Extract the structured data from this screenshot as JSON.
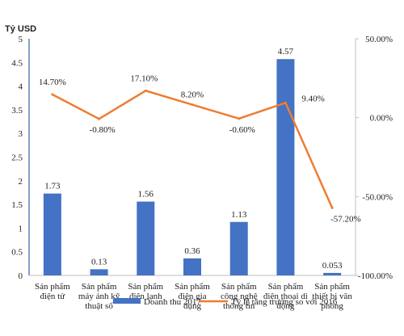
{
  "chart_data": {
    "type": "bar",
    "ylabel_left": "Tỷ USD",
    "categories": [
      [
        "Sản phẩm",
        "điện tử"
      ],
      [
        "Sản phẩm",
        "máy ảnh kỹ",
        "thuật số"
      ],
      [
        "Sản phẩm",
        "điện lạnh"
      ],
      [
        "Sản phẩm",
        "điện gia",
        "dụng"
      ],
      [
        "Sản phẩm",
        "công nghệ",
        "thông tin"
      ],
      [
        "Sản phẩm",
        "điện thoại di",
        "động"
      ],
      [
        "Sản phẩm",
        "thiết bị văn",
        "phòng"
      ]
    ],
    "series": [
      {
        "name": "Doanh thu 2017",
        "type": "bar",
        "axis": "left",
        "color": "#4472C4",
        "values": [
          1.73,
          0.13,
          1.56,
          0.36,
          1.13,
          4.57,
          0.053
        ],
        "labels": [
          "1.73",
          "0.13",
          "1.56",
          "0.36",
          "1.13",
          "4.57",
          "0.053"
        ]
      },
      {
        "name": "Tỷ lệ tăng trưởng so với 2016",
        "type": "line",
        "axis": "right",
        "color": "#ED7D31",
        "values": [
          14.7,
          -0.8,
          17.1,
          8.2,
          -0.6,
          9.4,
          -57.2
        ],
        "labels": [
          "14.70%",
          "-0.80%",
          "17.10%",
          "8.20%",
          "-0.60%",
          "9.40%",
          "-57.20%"
        ]
      }
    ],
    "y_left": {
      "min": 0,
      "max": 5,
      "ticks": [
        "0",
        "0.5",
        "1",
        "1.5",
        "2",
        "2.5",
        "3",
        "3.5",
        "4",
        "4.5",
        "5"
      ]
    },
    "y_right": {
      "min": -100,
      "max": 50,
      "ticks": [
        "-100.00%",
        "-50.00%",
        "0.00%",
        "50.00%"
      ]
    },
    "grid": false,
    "legend_position": "bottom"
  }
}
